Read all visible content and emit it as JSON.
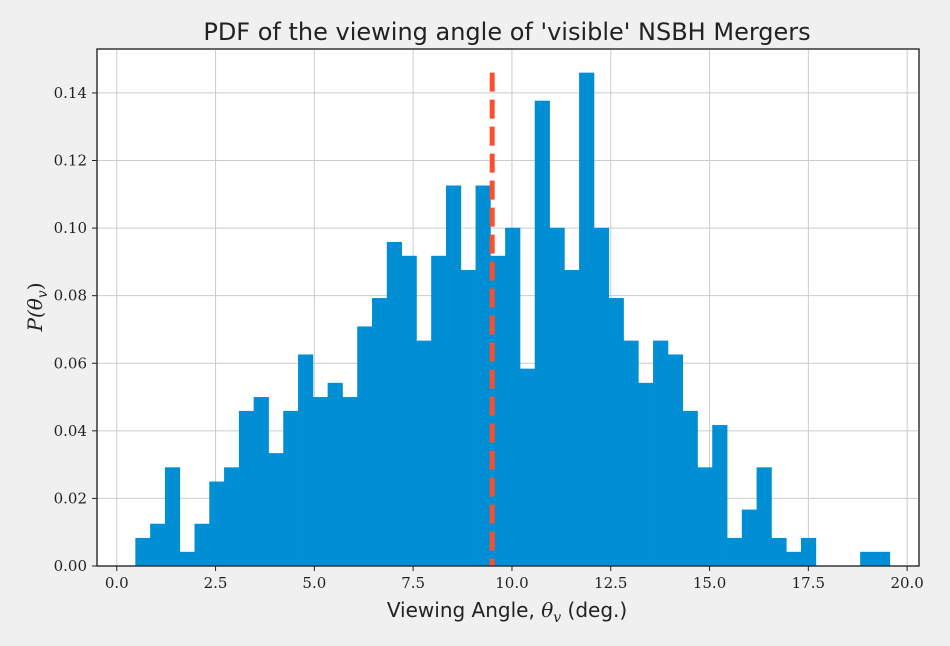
{
  "chart_data": {
    "type": "bar",
    "title": "PDF of the viewing angle of 'visible' NSBH Mergers",
    "xlabel_prefix": "Viewing Angle, ",
    "xlabel_symbol": "θ",
    "xlabel_sub": "v",
    "xlabel_suffix": " (deg.)",
    "ylabel": "P(θv)",
    "ylabel_parts": {
      "p": "P(",
      "theta": "θ",
      "sub": "v",
      "close": ")"
    },
    "xlim": [
      -0.5,
      20.3
    ],
    "ylim": [
      0,
      0.153
    ],
    "xticks": [
      0.0,
      2.5,
      5.0,
      7.5,
      10.0,
      12.5,
      15.0,
      17.5,
      20.0
    ],
    "xtick_labels": [
      "0.0",
      "2.5",
      "5.0",
      "7.5",
      "10.0",
      "12.5",
      "15.0",
      "17.5",
      "20.0"
    ],
    "yticks": [
      0.0,
      0.02,
      0.04,
      0.06,
      0.08,
      0.1,
      0.12,
      0.14
    ],
    "ytick_labels": [
      "0.00",
      "0.02",
      "0.04",
      "0.06",
      "0.08",
      "0.10",
      "0.12",
      "0.14"
    ],
    "grid": true,
    "bar_color": "#008fd5",
    "bin_start": 0.47,
    "bin_width": 0.3743,
    "values": [
      0.0083,
      0.0125,
      0.0292,
      0.0042,
      0.0125,
      0.025,
      0.0292,
      0.0459,
      0.05,
      0.0334,
      0.0459,
      0.0626,
      0.05,
      0.0542,
      0.05,
      0.0709,
      0.0793,
      0.0959,
      0.0918,
      0.0667,
      0.0918,
      0.1126,
      0.0876,
      0.1126,
      0.0918,
      0.1001,
      0.0584,
      0.1377,
      0.1001,
      0.0876,
      0.146,
      0.1001,
      0.0793,
      0.0667,
      0.0542,
      0.0667,
      0.0626,
      0.0459,
      0.0292,
      0.0417,
      0.0083,
      0.0167,
      0.0292,
      0.0083,
      0.0042,
      0.0083,
      0.0,
      0.0,
      0.0,
      0.0042,
      0.0042
    ],
    "reference_line": {
      "x": 9.5,
      "color": "#fc4f30",
      "style": "dashed"
    }
  }
}
